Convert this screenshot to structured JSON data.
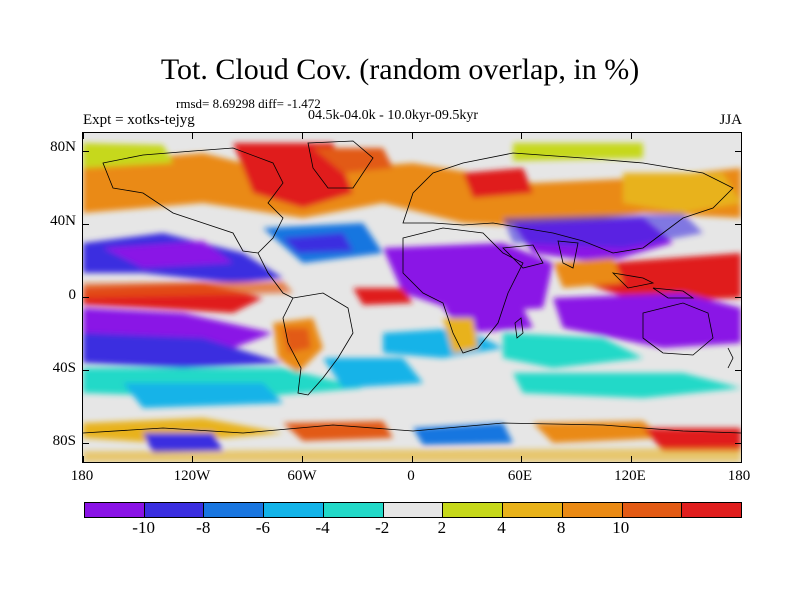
{
  "header": {
    "title": "Tot. Cloud Cov. (random overlap, in %)",
    "stats": "rmsd= 8.69298 diff= -1.472",
    "period": "04.5k-04.0k - 10.0kyr-09.5kyr",
    "experiment": "Expt = xotks-tejyg",
    "season": "JJA"
  },
  "axes": {
    "y_labels": [
      "80N",
      "40N",
      "0",
      "40S",
      "80S"
    ],
    "y_values": [
      80,
      40,
      0,
      -40,
      -80
    ],
    "x_labels": [
      "180",
      "120W",
      "60W",
      "0",
      "60E",
      "120E",
      "180"
    ],
    "x_values": [
      -180,
      -120,
      -60,
      0,
      60,
      120,
      180
    ],
    "lon_range": [
      -180,
      180
    ],
    "lat_range": [
      -90,
      90
    ]
  },
  "colorbar": {
    "colors": [
      "#8a12e6",
      "#3a2ee0",
      "#1976e0",
      "#12b3e8",
      "#22d9c8",
      "#e6e6e6",
      "#c6d81a",
      "#e8b21a",
      "#ea8a14",
      "#e25a14",
      "#e01e1e"
    ],
    "labels": [
      "-10",
      "-8",
      "-6",
      "-4",
      "-2",
      "2",
      "4",
      "8",
      "10"
    ]
  },
  "map_colors": {
    "neutral": "#e6e6e6",
    "coast": "#000000"
  }
}
